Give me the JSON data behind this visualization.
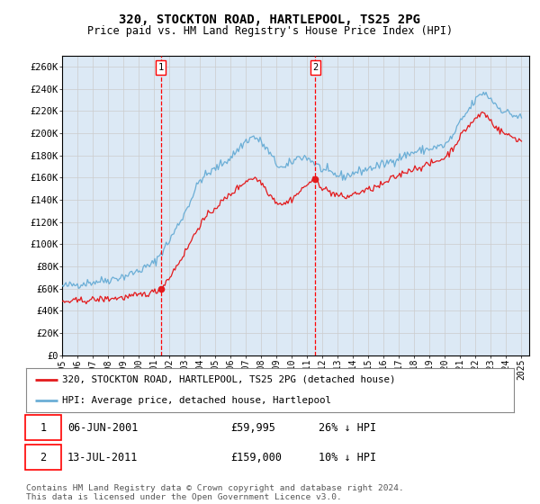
{
  "title": "320, STOCKTON ROAD, HARTLEPOOL, TS25 2PG",
  "subtitle": "Price paid vs. HM Land Registry's House Price Index (HPI)",
  "ylabel_ticks": [
    "£0",
    "£20K",
    "£40K",
    "£60K",
    "£80K",
    "£100K",
    "£120K",
    "£140K",
    "£160K",
    "£180K",
    "£200K",
    "£220K",
    "£240K",
    "£260K"
  ],
  "ylim": [
    0,
    270000
  ],
  "yticks": [
    0,
    20000,
    40000,
    60000,
    80000,
    100000,
    120000,
    140000,
    160000,
    180000,
    200000,
    220000,
    240000,
    260000
  ],
  "xlim_start": 1995.0,
  "xlim_end": 2025.5,
  "sale1_x": 2001.44,
  "sale1_y": 59995,
  "sale1_label": "1",
  "sale1_date": "06-JUN-2001",
  "sale1_price": "£59,995",
  "sale1_hpi": "26% ↓ HPI",
  "sale2_x": 2011.54,
  "sale2_y": 159000,
  "sale2_label": "2",
  "sale2_date": "13-JUL-2011",
  "sale2_price": "£159,000",
  "sale2_hpi": "10% ↓ HPI",
  "legend_line1": "320, STOCKTON ROAD, HARTLEPOOL, TS25 2PG (detached house)",
  "legend_line2": "HPI: Average price, detached house, Hartlepool",
  "footer1": "Contains HM Land Registry data © Crown copyright and database right 2024.",
  "footer2": "This data is licensed under the Open Government Licence v3.0.",
  "hpi_color": "#6baed6",
  "price_color": "#e31a1c",
  "bg_color": "#dce9f5",
  "plot_bg": "#ffffff",
  "grid_color": "#cccccc",
  "hpi_anchors": [
    [
      1995.0,
      62000
    ],
    [
      1996.0,
      64000
    ],
    [
      1997.0,
      66000
    ],
    [
      1998.0,
      68000
    ],
    [
      1999.0,
      71000
    ],
    [
      2000.0,
      76000
    ],
    [
      2001.0,
      83000
    ],
    [
      2002.0,
      103000
    ],
    [
      2003.0,
      128000
    ],
    [
      2004.0,
      158000
    ],
    [
      2005.0,
      168000
    ],
    [
      2006.0,
      178000
    ],
    [
      2007.0,
      193000
    ],
    [
      2007.5,
      197000
    ],
    [
      2008.0,
      192000
    ],
    [
      2008.5,
      183000
    ],
    [
      2009.0,
      172000
    ],
    [
      2009.5,
      168000
    ],
    [
      2010.0,
      174000
    ],
    [
      2010.5,
      179000
    ],
    [
      2011.0,
      178000
    ],
    [
      2011.5,
      173000
    ],
    [
      2012.0,
      167000
    ],
    [
      2012.5,
      164000
    ],
    [
      2013.0,
      162000
    ],
    [
      2013.5,
      161000
    ],
    [
      2014.0,
      164000
    ],
    [
      2015.0,
      168000
    ],
    [
      2016.0,
      172000
    ],
    [
      2017.0,
      178000
    ],
    [
      2018.0,
      183000
    ],
    [
      2019.0,
      186000
    ],
    [
      2020.0,
      189000
    ],
    [
      2020.5,
      197000
    ],
    [
      2021.0,
      210000
    ],
    [
      2021.5,
      220000
    ],
    [
      2022.0,
      230000
    ],
    [
      2022.5,
      237000
    ],
    [
      2023.0,
      231000
    ],
    [
      2023.5,
      223000
    ],
    [
      2024.0,
      219000
    ],
    [
      2024.5,
      216000
    ],
    [
      2025.0,
      214000
    ]
  ],
  "price_anchors": [
    [
      1995.0,
      48000
    ],
    [
      1996.0,
      49000
    ],
    [
      1997.0,
      50000
    ],
    [
      1998.0,
      51000
    ],
    [
      1999.0,
      52000
    ],
    [
      2000.0,
      54000
    ],
    [
      2001.0,
      57000
    ],
    [
      2001.44,
      59995
    ],
    [
      2002.0,
      70000
    ],
    [
      2003.0,
      92000
    ],
    [
      2004.0,
      118000
    ],
    [
      2005.0,
      133000
    ],
    [
      2006.0,
      145000
    ],
    [
      2007.0,
      157000
    ],
    [
      2007.5,
      160000
    ],
    [
      2008.0,
      156000
    ],
    [
      2008.5,
      146000
    ],
    [
      2009.0,
      138000
    ],
    [
      2009.5,
      136000
    ],
    [
      2010.0,
      141000
    ],
    [
      2010.5,
      147000
    ],
    [
      2011.0,
      154000
    ],
    [
      2011.54,
      159000
    ],
    [
      2012.0,
      151000
    ],
    [
      2012.5,
      147000
    ],
    [
      2013.0,
      144000
    ],
    [
      2013.5,
      142000
    ],
    [
      2014.0,
      145000
    ],
    [
      2015.0,
      149000
    ],
    [
      2016.0,
      154000
    ],
    [
      2016.5,
      159000
    ],
    [
      2017.0,
      162000
    ],
    [
      2017.5,
      166000
    ],
    [
      2018.0,
      168000
    ],
    [
      2018.5,
      170000
    ],
    [
      2019.0,
      172000
    ],
    [
      2019.5,
      175000
    ],
    [
      2020.0,
      178000
    ],
    [
      2020.5,
      186000
    ],
    [
      2021.0,
      197000
    ],
    [
      2021.5,
      206000
    ],
    [
      2022.0,
      213000
    ],
    [
      2022.5,
      219000
    ],
    [
      2023.0,
      211000
    ],
    [
      2023.5,
      203000
    ],
    [
      2024.0,
      199000
    ],
    [
      2024.5,
      196000
    ],
    [
      2025.0,
      193000
    ]
  ]
}
